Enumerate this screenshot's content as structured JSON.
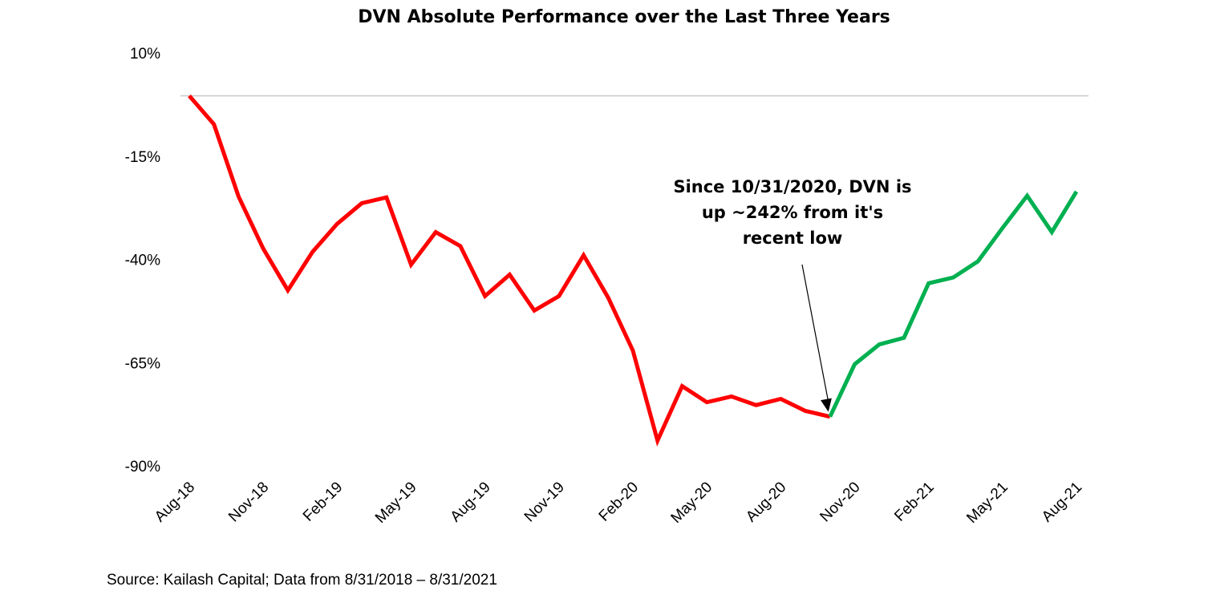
{
  "chart_data": {
    "type": "line",
    "title": "DVN Absolute Performance over the Last Three Years",
    "categories": [
      "Aug-18",
      null,
      null,
      "Nov-18",
      null,
      null,
      "Feb-19",
      null,
      null,
      "May-19",
      null,
      null,
      "Aug-19",
      null,
      null,
      "Nov-19",
      null,
      null,
      "Feb-20",
      null,
      null,
      "May-20",
      null,
      null,
      "Aug-20",
      null,
      null,
      "Nov-20",
      null,
      null,
      "Feb-21",
      null,
      null,
      "May-21",
      null,
      null,
      "Aug-21"
    ],
    "series": [
      {
        "color": "#ff0000",
        "values": [
          0,
          -6.9,
          -24.4,
          -37,
          -47.1,
          -37.8,
          -31,
          -26,
          -24.6,
          -40.9,
          -33,
          -36.4,
          -48.5,
          -43.3,
          -52,
          -48.5,
          -38.6,
          -48.9,
          -61.7,
          -83.5,
          -70.3,
          -74.2,
          -72.8,
          -74.9,
          -73.4,
          -76.3,
          -77.7,
          null,
          null,
          null,
          null,
          null,
          null,
          null,
          null,
          null,
          null
        ]
      },
      {
        "color": "#00b050",
        "values": [
          null,
          null,
          null,
          null,
          null,
          null,
          null,
          null,
          null,
          null,
          null,
          null,
          null,
          null,
          null,
          null,
          null,
          null,
          null,
          null,
          null,
          null,
          null,
          null,
          null,
          null,
          -77.7,
          -65,
          -60.2,
          -58.6,
          -45.4,
          -44,
          -40.1,
          -32,
          -24.2,
          -33,
          -23.2
        ]
      }
    ],
    "ylim": [
      -90,
      10
    ],
    "yticks": [
      {
        "value": 10,
        "label": "10%"
      },
      {
        "value": -15,
        "label": "-15%"
      },
      {
        "value": -40,
        "label": "-40%"
      },
      {
        "value": -65,
        "label": "-65%"
      },
      {
        "value": -90,
        "label": "-90%"
      }
    ],
    "annotation": {
      "lines": [
        "Since 10/31/2020, DVN is",
        "up ~242% from it's",
        "recent low"
      ],
      "point_index": 26
    },
    "source": "Source: Kailash Capital; Data from 8/31/2018 – 8/31/2021"
  }
}
